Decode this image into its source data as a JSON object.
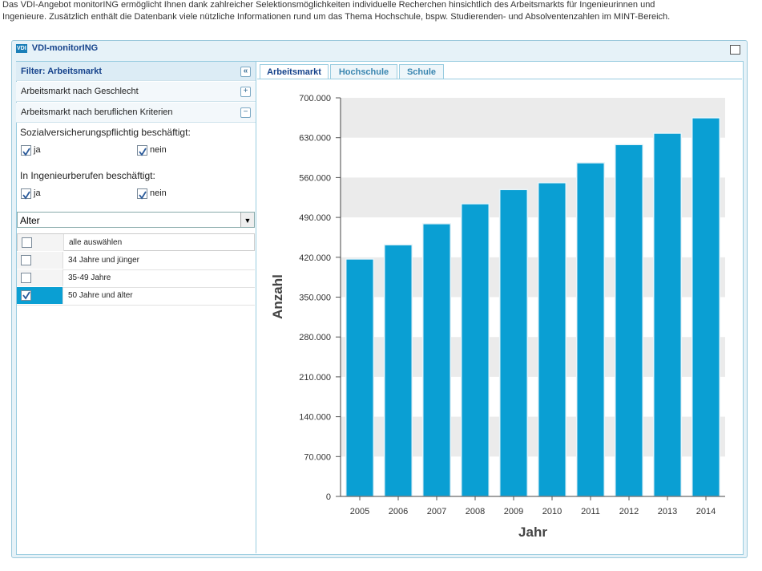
{
  "intro": [
    "Das VDI-Angebot monitorING ermöglicht Ihnen dank zahlreicher Selektionsmöglichkeiten individuelle Recherchen hinsichtlich des Arbeitsmarkts für Ingenieurinnen und",
    "Ingenieure. Zusätzlich enthält die Datenbank viele nützliche Informationen rund um das Thema Hochschule, bspw. Studierenden- und Absolventenzahlen im MINT-Bereich."
  ],
  "window": {
    "logo": "VDI",
    "title": "VDI-monitorING"
  },
  "filter": {
    "title": "Filter: Arbeitsmarkt",
    "sections": [
      "Arbeitsmarkt nach Geschlecht",
      "Arbeitsmarkt nach beruflichen Kriterien"
    ],
    "groups": [
      {
        "label": "Sozialversicherungspflichtig beschäftigt:",
        "options": [
          {
            "label": "ja",
            "checked": true
          },
          {
            "label": "nein",
            "checked": true
          }
        ]
      },
      {
        "label": "In Ingenieurberufen beschäftigt:",
        "options": [
          {
            "label": "ja",
            "checked": true
          },
          {
            "label": "nein",
            "checked": true
          }
        ]
      }
    ],
    "dropdown": "Alter",
    "list": [
      {
        "label": "alle auswählen",
        "checked": false
      },
      {
        "label": "34 Jahre und jünger",
        "checked": false
      },
      {
        "label": "35-49 Jahre",
        "checked": false
      },
      {
        "label": "50 Jahre und älter",
        "checked": true,
        "selected": true
      }
    ]
  },
  "tabs": [
    "Arbeitsmarkt",
    "Hochschule",
    "Schule"
  ],
  "chart_data": {
    "type": "bar",
    "x_label": "Jahr",
    "y_label": "Anzahl",
    "color": "#0a9fd3",
    "grid": true,
    "categories": [
      "2005",
      "2006",
      "2007",
      "2008",
      "2009",
      "2010",
      "2011",
      "2012",
      "2013",
      "2014"
    ],
    "values": [
      417000,
      442000,
      479000,
      514000,
      539000,
      551000,
      586000,
      618000,
      638000,
      665000
    ],
    "ylim": [
      0,
      700000
    ],
    "yticks": [
      0,
      {
        "value": 70000,
        "label": "70.000"
      },
      {
        "value": 140000,
        "label": "140.000"
      },
      {
        "value": 210000,
        "label": "210.000"
      },
      {
        "value": 280000,
        "label": "280.000"
      },
      {
        "value": 350000,
        "label": "350.000"
      },
      {
        "value": 420000,
        "label": "420.000"
      },
      {
        "value": 490000,
        "label": "490.000"
      },
      {
        "value": 560000,
        "label": "560.000"
      },
      {
        "value": 630000,
        "label": "630.000"
      },
      {
        "value": 700000,
        "label": "700.000"
      }
    ]
  }
}
